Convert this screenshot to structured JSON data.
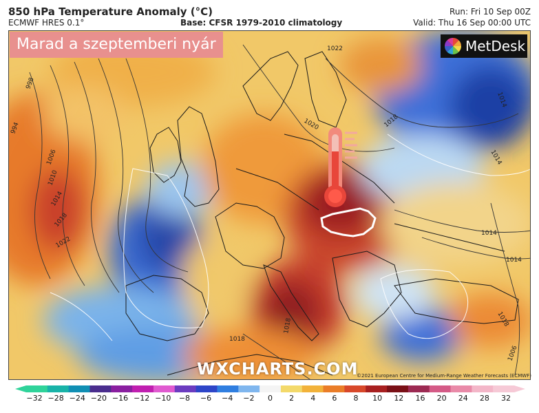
{
  "header": {
    "title": "850 hPa Temperature Anomaly (°C)",
    "model": "ECMWF HRES 0.1°",
    "base": "Base: CFSR 1979-2010 climatology",
    "run": "Run: Fri 10 Sep 00Z",
    "valid": "Valid: Thu 16 Sep 00:00 UTC"
  },
  "overlay": {
    "banner": "Marad a szeptemberi nyár",
    "brand": "MetDesk",
    "watermark": "WXCHARTS.COM",
    "copyright": "©2021 European Centre for Medium-Range Weather Forecasts (ECMWF)"
  },
  "isobar_labels": [
    "998",
    "994",
    "1006",
    "1010",
    "1014",
    "1018",
    "1022",
    "1022",
    "1020",
    "1018",
    "1014",
    "1014",
    "1018",
    "1018",
    "1018",
    "1006",
    "1014",
    "1014"
  ],
  "colorbar": {
    "ticks": [
      "−32",
      "−28",
      "−24",
      "−20",
      "−16",
      "−12",
      "−10",
      "−8",
      "−6",
      "−4",
      "−2",
      "0",
      "2",
      "4",
      "6",
      "8",
      "10",
      "12",
      "16",
      "20",
      "24",
      "28",
      "32"
    ],
    "colors": [
      "#2fd39a",
      "#18b3a8",
      "#108fb4",
      "#4a2d8e",
      "#8a1fa0",
      "#c01fb0",
      "#e05ad0",
      "#6b3cc0",
      "#2d45c8",
      "#2f7ee0",
      "#7fb6ee",
      "#f4f4f4",
      "#f3d96a",
      "#f2b23a",
      "#ea7d28",
      "#d8482a",
      "#a82020",
      "#7a1016",
      "#9c2a52",
      "#d45a86",
      "#e98aa8",
      "#f3b6c8",
      "#f6c9d6"
    ]
  },
  "icons": {
    "thermometer": "thermometer-icon",
    "hungary": "hungary-outline",
    "logo": "metdesk-logo-icon"
  }
}
